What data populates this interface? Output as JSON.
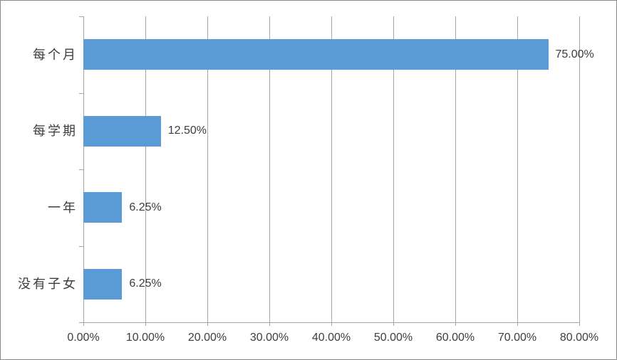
{
  "chart_data": {
    "type": "bar",
    "orientation": "horizontal",
    "title": "",
    "categories": [
      "每个月",
      "每学期",
      "一年",
      "没有子女"
    ],
    "values": [
      75.0,
      12.5,
      6.25,
      6.25
    ],
    "data_labels": [
      "75.00%",
      "12.50%",
      "6.25%",
      "6.25%"
    ],
    "x_axis": {
      "min": 0,
      "max": 80,
      "step": 10,
      "tick_labels": [
        "0.00%",
        "10.00%",
        "20.00%",
        "30.00%",
        "40.00%",
        "50.00%",
        "60.00%",
        "70.00%",
        "80.00%"
      ]
    },
    "grid": true,
    "legend": "none",
    "colors": {
      "bar": "#5b9bd5",
      "gridline": "#a6a6a6",
      "axis": "#a6a6a6",
      "text": "#3d3d3d",
      "border": "#8a8a8a",
      "background": "#ffffff"
    }
  }
}
